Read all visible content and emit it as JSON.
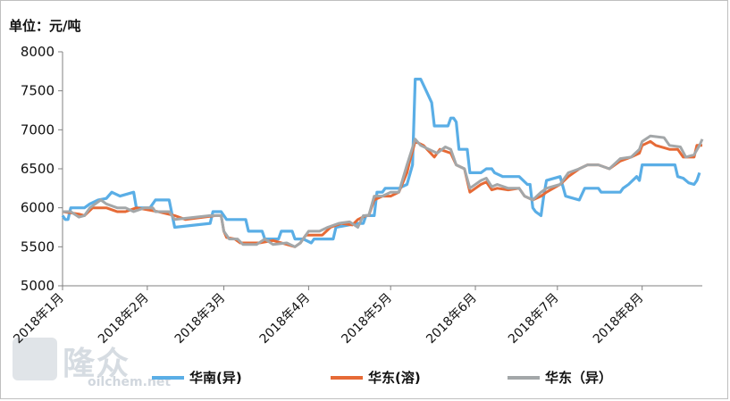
{
  "unit_label": "单位：元/吨",
  "watermark": {
    "name": "隆众",
    "url": "oilchem.net"
  },
  "colors": {
    "huanan_yi": "#5aaee6",
    "huadong_rong": "#e66a36",
    "huadong_yi": "#a3a7a9"
  },
  "chart_data": {
    "type": "line",
    "ylim": [
      5000,
      8000
    ],
    "yticks": [
      5000,
      5500,
      6000,
      6500,
      7000,
      7500,
      8000
    ],
    "xlim": [
      "2018-01-02",
      "2018-08-24"
    ],
    "xticks": [
      {
        "date": "2018-01-02",
        "label": "2018年1月"
      },
      {
        "date": "2018-02-02",
        "label": "2018年2月"
      },
      {
        "date": "2018-03-02",
        "label": "2018年3月"
      },
      {
        "date": "2018-04-02",
        "label": "2018年4月"
      },
      {
        "date": "2018-05-02",
        "label": "2018年5月"
      },
      {
        "date": "2018-06-02",
        "label": "2018年6月"
      },
      {
        "date": "2018-07-02",
        "label": "2018年7月"
      },
      {
        "date": "2018-08-02",
        "label": "2018年8月"
      }
    ],
    "series": [
      {
        "name": "华南(异)",
        "color": "#5aaee6",
        "points": [
          [
            "2018-01-02",
            5900
          ],
          [
            "2018-01-03",
            5850
          ],
          [
            "2018-01-04",
            5850
          ],
          [
            "2018-01-05",
            6000
          ],
          [
            "2018-01-10",
            6000
          ],
          [
            "2018-01-12",
            6050
          ],
          [
            "2018-01-15",
            6100
          ],
          [
            "2018-01-18",
            6120
          ],
          [
            "2018-01-20",
            6200
          ],
          [
            "2018-01-23",
            6150
          ],
          [
            "2018-01-28",
            6200
          ],
          [
            "2018-01-29",
            6000
          ],
          [
            "2018-02-03",
            6000
          ],
          [
            "2018-02-05",
            6100
          ],
          [
            "2018-02-10",
            6100
          ],
          [
            "2018-02-12",
            5750
          ],
          [
            "2018-02-25",
            5800
          ],
          [
            "2018-02-26",
            5950
          ],
          [
            "2018-03-01",
            5950
          ],
          [
            "2018-03-03",
            5850
          ],
          [
            "2018-03-10",
            5850
          ],
          [
            "2018-03-11",
            5700
          ],
          [
            "2018-03-16",
            5700
          ],
          [
            "2018-03-17",
            5600
          ],
          [
            "2018-03-22",
            5600
          ],
          [
            "2018-03-23",
            5700
          ],
          [
            "2018-03-27",
            5700
          ],
          [
            "2018-03-28",
            5600
          ],
          [
            "2018-03-31",
            5600
          ],
          [
            "2018-04-03",
            5550
          ],
          [
            "2018-04-04",
            5600
          ],
          [
            "2018-04-11",
            5600
          ],
          [
            "2018-04-12",
            5750
          ],
          [
            "2018-04-20",
            5800
          ],
          [
            "2018-04-22",
            5800
          ],
          [
            "2018-04-23",
            5900
          ],
          [
            "2018-04-26",
            5900
          ],
          [
            "2018-04-27",
            6200
          ],
          [
            "2018-04-29",
            6200
          ],
          [
            "2018-04-30",
            6250
          ],
          [
            "2018-05-05",
            6250
          ],
          [
            "2018-05-08",
            6300
          ],
          [
            "2018-05-10",
            6550
          ],
          [
            "2018-05-11",
            7650
          ],
          [
            "2018-05-13",
            7650
          ],
          [
            "2018-05-15",
            7500
          ],
          [
            "2018-05-17",
            7350
          ],
          [
            "2018-05-18",
            7050
          ],
          [
            "2018-05-23",
            7050
          ],
          [
            "2018-05-24",
            7150
          ],
          [
            "2018-05-25",
            7150
          ],
          [
            "2018-05-26",
            7100
          ],
          [
            "2018-05-27",
            6750
          ],
          [
            "2018-05-30",
            6750
          ],
          [
            "2018-05-31",
            6450
          ],
          [
            "2018-06-04",
            6450
          ],
          [
            "2018-06-06",
            6500
          ],
          [
            "2018-06-08",
            6500
          ],
          [
            "2018-06-09",
            6450
          ],
          [
            "2018-06-12",
            6400
          ],
          [
            "2018-06-18",
            6400
          ],
          [
            "2018-06-21",
            6300
          ],
          [
            "2018-06-22",
            6300
          ],
          [
            "2018-06-23",
            6000
          ],
          [
            "2018-06-24",
            5950
          ],
          [
            "2018-06-26",
            5900
          ],
          [
            "2018-06-27",
            6150
          ],
          [
            "2018-06-28",
            6350
          ],
          [
            "2018-07-03",
            6400
          ],
          [
            "2018-07-05",
            6150
          ],
          [
            "2018-07-10",
            6100
          ],
          [
            "2018-07-12",
            6250
          ],
          [
            "2018-07-17",
            6250
          ],
          [
            "2018-07-18",
            6200
          ],
          [
            "2018-07-25",
            6200
          ],
          [
            "2018-07-26",
            6250
          ],
          [
            "2018-07-28",
            6300
          ],
          [
            "2018-07-31",
            6400
          ],
          [
            "2018-08-01",
            6350
          ],
          [
            "2018-08-02",
            6550
          ],
          [
            "2018-08-14",
            6550
          ],
          [
            "2018-08-15",
            6400
          ],
          [
            "2018-08-17",
            6380
          ],
          [
            "2018-08-19",
            6320
          ],
          [
            "2018-08-21",
            6300
          ],
          [
            "2018-08-22",
            6350
          ],
          [
            "2018-08-23",
            6450
          ]
        ]
      },
      {
        "name": "华东(溶)",
        "color": "#e66a36",
        "points": [
          [
            "2018-01-02",
            5950
          ],
          [
            "2018-01-08",
            5920
          ],
          [
            "2018-01-10",
            5900
          ],
          [
            "2018-01-13",
            6000
          ],
          [
            "2018-01-18",
            6000
          ],
          [
            "2018-01-22",
            5950
          ],
          [
            "2018-01-25",
            5950
          ],
          [
            "2018-01-29",
            6000
          ],
          [
            "2018-02-06",
            5950
          ],
          [
            "2018-02-12",
            5900
          ],
          [
            "2018-02-16",
            5850
          ],
          [
            "2018-02-27",
            5900
          ],
          [
            "2018-03-01",
            5900
          ],
          [
            "2018-03-02",
            5700
          ],
          [
            "2018-03-03",
            5620
          ],
          [
            "2018-03-06",
            5600
          ],
          [
            "2018-03-08",
            5550
          ],
          [
            "2018-03-15",
            5550
          ],
          [
            "2018-03-20",
            5580
          ],
          [
            "2018-03-25",
            5530
          ],
          [
            "2018-03-28",
            5500
          ],
          [
            "2018-03-30",
            5550
          ],
          [
            "2018-04-01",
            5650
          ],
          [
            "2018-04-04",
            5650
          ],
          [
            "2018-04-07",
            5650
          ],
          [
            "2018-04-10",
            5750
          ],
          [
            "2018-04-14",
            5800
          ],
          [
            "2018-04-18",
            5780
          ],
          [
            "2018-04-20",
            5850
          ],
          [
            "2018-04-23",
            5900
          ],
          [
            "2018-04-24",
            5900
          ],
          [
            "2018-04-26",
            6100
          ],
          [
            "2018-04-29",
            6150
          ],
          [
            "2018-05-02",
            6150
          ],
          [
            "2018-05-05",
            6200
          ],
          [
            "2018-05-08",
            6450
          ],
          [
            "2018-05-09",
            6600
          ],
          [
            "2018-05-11",
            6850
          ],
          [
            "2018-05-14",
            6800
          ],
          [
            "2018-05-18",
            6650
          ],
          [
            "2018-05-20",
            6750
          ],
          [
            "2018-05-24",
            6700
          ],
          [
            "2018-05-26",
            6550
          ],
          [
            "2018-05-29",
            6500
          ],
          [
            "2018-05-31",
            6200
          ],
          [
            "2018-06-04",
            6300
          ],
          [
            "2018-06-06",
            6330
          ],
          [
            "2018-06-08",
            6230
          ],
          [
            "2018-06-10",
            6250
          ],
          [
            "2018-06-14",
            6230
          ],
          [
            "2018-06-18",
            6250
          ],
          [
            "2018-06-20",
            6150
          ],
          [
            "2018-06-23",
            6100
          ],
          [
            "2018-06-26",
            6150
          ],
          [
            "2018-06-28",
            6200
          ],
          [
            "2018-07-03",
            6300
          ],
          [
            "2018-07-06",
            6400
          ],
          [
            "2018-07-10",
            6500
          ],
          [
            "2018-07-13",
            6550
          ],
          [
            "2018-07-17",
            6550
          ],
          [
            "2018-07-21",
            6500
          ],
          [
            "2018-07-25",
            6600
          ],
          [
            "2018-07-29",
            6650
          ],
          [
            "2018-08-01",
            6700
          ],
          [
            "2018-08-02",
            6800
          ],
          [
            "2018-08-05",
            6850
          ],
          [
            "2018-08-07",
            6800
          ],
          [
            "2018-08-12",
            6750
          ],
          [
            "2018-08-15",
            6750
          ],
          [
            "2018-08-17",
            6650
          ],
          [
            "2018-08-21",
            6650
          ],
          [
            "2018-08-22",
            6800
          ],
          [
            "2018-08-24",
            6800
          ]
        ]
      },
      {
        "name": "华东（异）",
        "color": "#a3a7a9",
        "points": [
          [
            "2018-01-02",
            5950
          ],
          [
            "2018-01-05",
            5950
          ],
          [
            "2018-01-08",
            5880
          ],
          [
            "2018-01-10",
            5900
          ],
          [
            "2018-01-12",
            6000
          ],
          [
            "2018-01-16",
            6100
          ],
          [
            "2018-01-18",
            6050
          ],
          [
            "2018-01-22",
            6000
          ],
          [
            "2018-01-25",
            6000
          ],
          [
            "2018-01-28",
            5950
          ],
          [
            "2018-02-01",
            6000
          ],
          [
            "2018-02-04",
            6000
          ],
          [
            "2018-02-05",
            5950
          ],
          [
            "2018-02-10",
            5950
          ],
          [
            "2018-02-12",
            5850
          ],
          [
            "2018-02-25",
            5900
          ],
          [
            "2018-02-27",
            5900
          ],
          [
            "2018-03-01",
            5900
          ],
          [
            "2018-03-02",
            5700
          ],
          [
            "2018-03-04",
            5600
          ],
          [
            "2018-03-07",
            5600
          ],
          [
            "2018-03-09",
            5530
          ],
          [
            "2018-03-14",
            5530
          ],
          [
            "2018-03-17",
            5600
          ],
          [
            "2018-03-20",
            5530
          ],
          [
            "2018-03-25",
            5550
          ],
          [
            "2018-03-28",
            5500
          ],
          [
            "2018-03-30",
            5550
          ],
          [
            "2018-04-02",
            5700
          ],
          [
            "2018-04-06",
            5700
          ],
          [
            "2018-04-09",
            5750
          ],
          [
            "2018-04-13",
            5800
          ],
          [
            "2018-04-17",
            5820
          ],
          [
            "2018-04-20",
            5750
          ],
          [
            "2018-04-22",
            5900
          ],
          [
            "2018-04-24",
            5900
          ],
          [
            "2018-04-26",
            6150
          ],
          [
            "2018-04-29",
            6150
          ],
          [
            "2018-05-02",
            6200
          ],
          [
            "2018-05-05",
            6200
          ],
          [
            "2018-05-08",
            6550
          ],
          [
            "2018-05-11",
            6880
          ],
          [
            "2018-05-13",
            6800
          ],
          [
            "2018-05-16",
            6750
          ],
          [
            "2018-05-19",
            6700
          ],
          [
            "2018-05-22",
            6780
          ],
          [
            "2018-05-24",
            6750
          ],
          [
            "2018-05-26",
            6550
          ],
          [
            "2018-05-29",
            6500
          ],
          [
            "2018-05-31",
            6250
          ],
          [
            "2018-06-04",
            6350
          ],
          [
            "2018-06-06",
            6380
          ],
          [
            "2018-06-08",
            6270
          ],
          [
            "2018-06-10",
            6300
          ],
          [
            "2018-06-14",
            6250
          ],
          [
            "2018-06-18",
            6250
          ],
          [
            "2018-06-20",
            6150
          ],
          [
            "2018-06-23",
            6100
          ],
          [
            "2018-06-26",
            6200
          ],
          [
            "2018-06-28",
            6250
          ],
          [
            "2018-07-03",
            6300
          ],
          [
            "2018-07-06",
            6450
          ],
          [
            "2018-07-10",
            6500
          ],
          [
            "2018-07-13",
            6550
          ],
          [
            "2018-07-17",
            6550
          ],
          [
            "2018-07-21",
            6500
          ],
          [
            "2018-07-25",
            6630
          ],
          [
            "2018-07-29",
            6650
          ],
          [
            "2018-08-01",
            6750
          ],
          [
            "2018-08-02",
            6850
          ],
          [
            "2018-08-05",
            6920
          ],
          [
            "2018-08-10",
            6900
          ],
          [
            "2018-08-12",
            6800
          ],
          [
            "2018-08-16",
            6780
          ],
          [
            "2018-08-18",
            6650
          ],
          [
            "2018-08-21",
            6680
          ],
          [
            "2018-08-23",
            6800
          ],
          [
            "2018-08-24",
            6880
          ]
        ]
      }
    ]
  }
}
